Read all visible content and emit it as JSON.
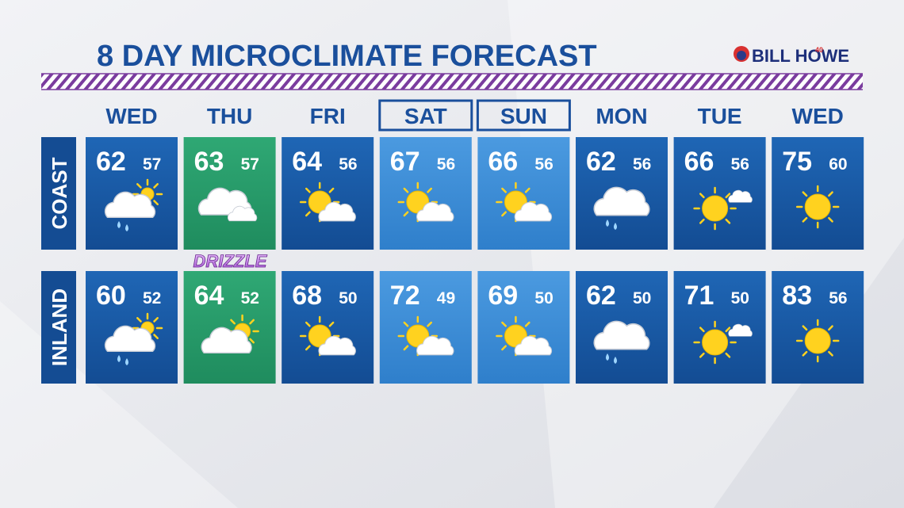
{
  "header": {
    "title": "8 DAY MICROCLIMATE FORECAST",
    "logo": "BILL HOWE",
    "logo_badge": "40"
  },
  "days": [
    "WED",
    "THU",
    "FRI",
    "SAT",
    "SUN",
    "MON",
    "TUE",
    "WED"
  ],
  "rows": [
    {
      "label": "COAST",
      "highs": [
        62,
        63,
        64,
        67,
        66,
        62,
        66,
        75
      ],
      "lows": [
        57,
        57,
        56,
        56,
        56,
        56,
        56,
        60
      ]
    },
    {
      "label": "INLAND",
      "highs": [
        60,
        64,
        68,
        72,
        69,
        62,
        71,
        83
      ],
      "lows": [
        52,
        52,
        50,
        49,
        50,
        50,
        50,
        56
      ]
    }
  ],
  "annotation": "DRIZZLE"
}
